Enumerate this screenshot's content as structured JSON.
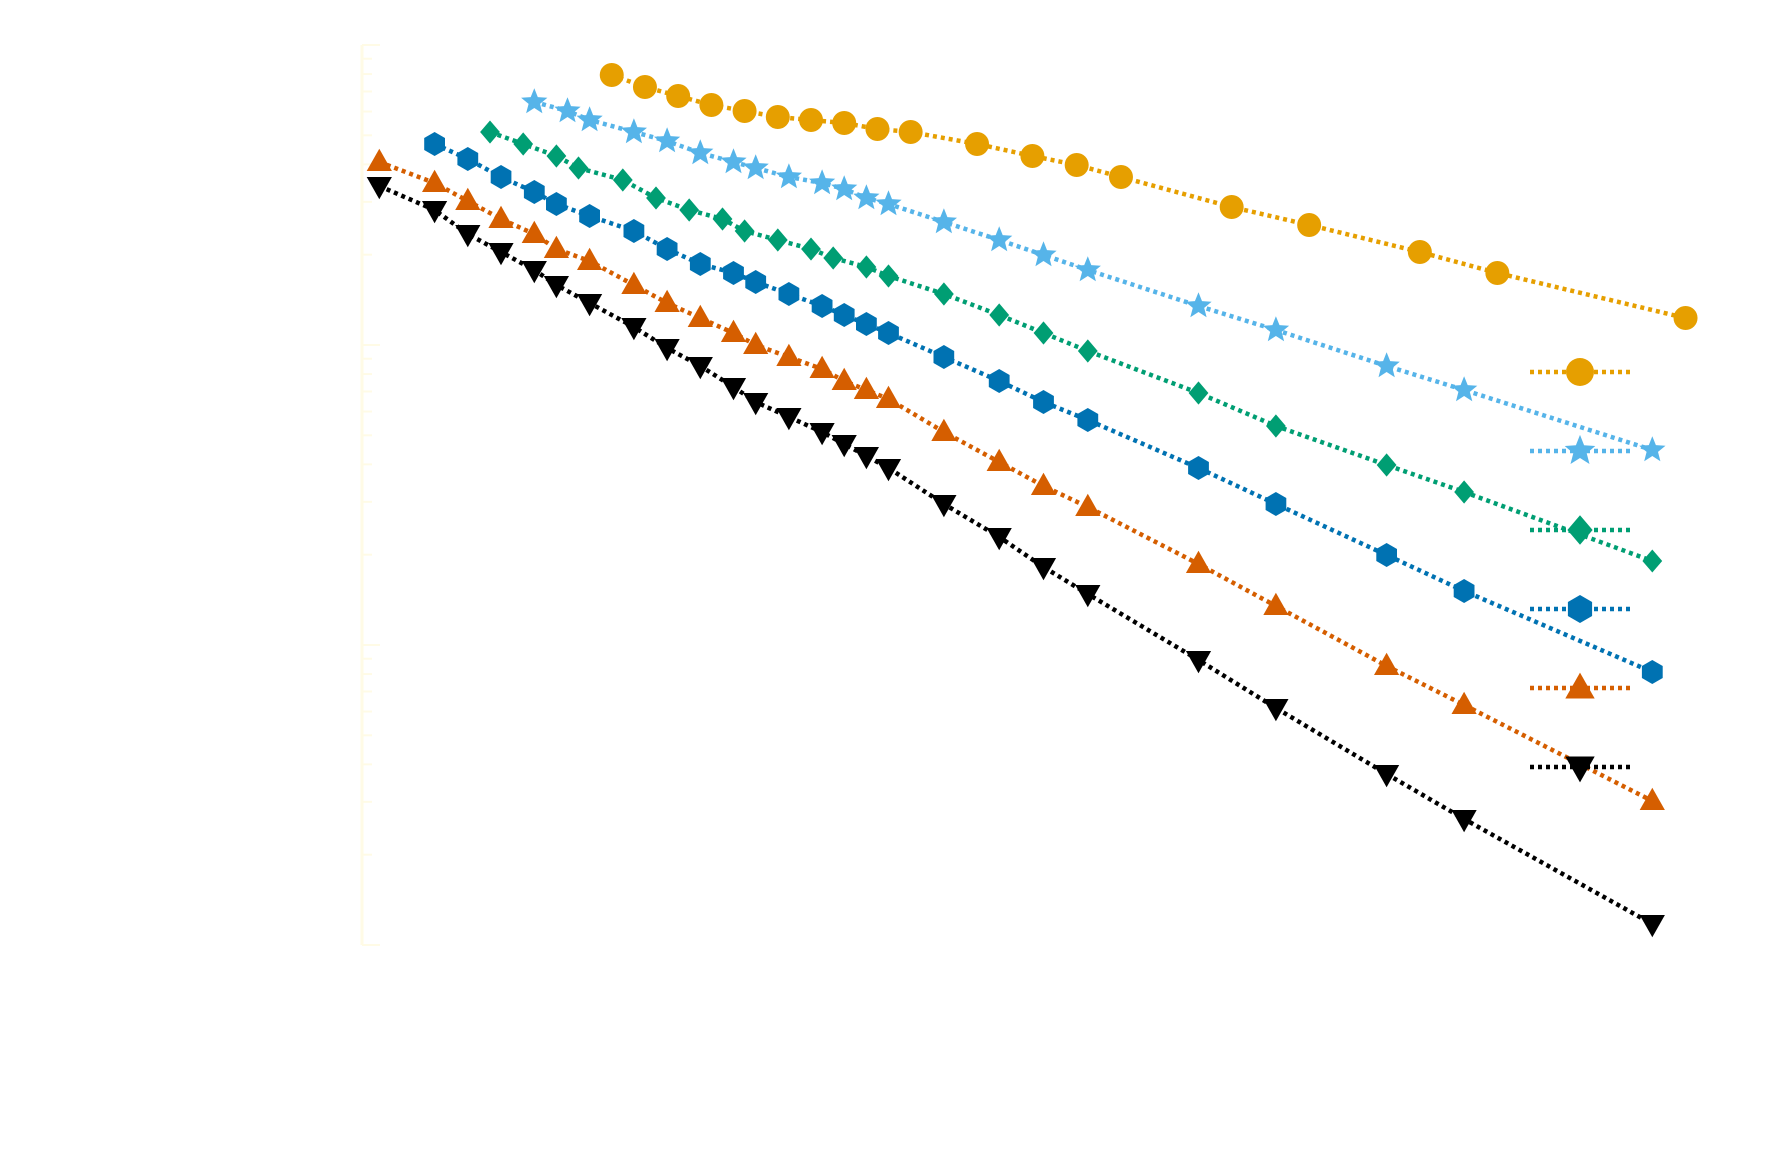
{
  "chart_data": {
    "type": "line",
    "title": "",
    "xlabel": "",
    "ylabel": "",
    "xscale": "log",
    "yscale": "log",
    "x_exponent_range": [
      0,
      1.35
    ],
    "y_exponent_range": [
      -3.0,
      0.0
    ],
    "grid": false,
    "legend": "right",
    "line_style": "dotted",
    "series": [
      {
        "name": "",
        "marker": "circle",
        "color": "#E69F00",
        "points": [
          [
            0.25,
            -0.1
          ],
          [
            0.28,
            -0.14
          ],
          [
            0.31,
            -0.17
          ],
          [
            0.34,
            -0.2
          ],
          [
            0.37,
            -0.22
          ],
          [
            0.4,
            -0.24
          ],
          [
            0.43,
            -0.25
          ],
          [
            0.46,
            -0.26
          ],
          [
            0.49,
            -0.28
          ],
          [
            0.52,
            -0.29
          ],
          [
            0.58,
            -0.33
          ],
          [
            0.63,
            -0.37
          ],
          [
            0.67,
            -0.4
          ],
          [
            0.71,
            -0.44
          ],
          [
            0.81,
            -0.54
          ],
          [
            0.88,
            -0.6
          ],
          [
            0.98,
            -0.69
          ],
          [
            1.05,
            -0.76
          ],
          [
            1.22,
            -0.91
          ]
        ]
      },
      {
        "name": "",
        "marker": "star",
        "color": "#56B4E9",
        "points": [
          [
            0.18,
            -0.19
          ],
          [
            0.21,
            -0.22
          ],
          [
            0.23,
            -0.25
          ],
          [
            0.27,
            -0.29
          ],
          [
            0.3,
            -0.32
          ],
          [
            0.33,
            -0.36
          ],
          [
            0.36,
            -0.39
          ],
          [
            0.38,
            -0.41
          ],
          [
            0.41,
            -0.44
          ],
          [
            0.44,
            -0.46
          ],
          [
            0.46,
            -0.48
          ],
          [
            0.48,
            -0.51
          ],
          [
            0.5,
            -0.53
          ],
          [
            0.55,
            -0.59
          ],
          [
            0.6,
            -0.65
          ],
          [
            0.64,
            -0.7
          ],
          [
            0.68,
            -0.75
          ],
          [
            0.78,
            -0.87
          ],
          [
            0.85,
            -0.95
          ],
          [
            0.95,
            -1.07
          ],
          [
            1.02,
            -1.15
          ],
          [
            1.19,
            -1.35
          ]
        ]
      },
      {
        "name": "",
        "marker": "diamond",
        "color": "#009E73",
        "points": [
          [
            0.14,
            -0.29
          ],
          [
            0.17,
            -0.33
          ],
          [
            0.2,
            -0.37
          ],
          [
            0.22,
            -0.41
          ],
          [
            0.26,
            -0.45
          ],
          [
            0.29,
            -0.51
          ],
          [
            0.32,
            -0.55
          ],
          [
            0.35,
            -0.58
          ],
          [
            0.37,
            -0.62
          ],
          [
            0.4,
            -0.65
          ],
          [
            0.43,
            -0.68
          ],
          [
            0.45,
            -0.71
          ],
          [
            0.48,
            -0.74
          ],
          [
            0.5,
            -0.77
          ],
          [
            0.55,
            -0.83
          ],
          [
            0.6,
            -0.9
          ],
          [
            0.64,
            -0.96
          ],
          [
            0.68,
            -1.02
          ],
          [
            0.78,
            -1.16
          ],
          [
            0.85,
            -1.27
          ],
          [
            0.95,
            -1.4
          ],
          [
            1.02,
            -1.49
          ],
          [
            1.19,
            -1.72
          ]
        ]
      },
      {
        "name": "",
        "marker": "hexagon",
        "color": "#0072B2",
        "points": [
          [
            0.09,
            -0.33
          ],
          [
            0.12,
            -0.38
          ],
          [
            0.15,
            -0.44
          ],
          [
            0.18,
            -0.49
          ],
          [
            0.2,
            -0.53
          ],
          [
            0.23,
            -0.57
          ],
          [
            0.27,
            -0.62
          ],
          [
            0.3,
            -0.68
          ],
          [
            0.33,
            -0.73
          ],
          [
            0.36,
            -0.76
          ],
          [
            0.38,
            -0.79
          ],
          [
            0.41,
            -0.83
          ],
          [
            0.44,
            -0.87
          ],
          [
            0.46,
            -0.9
          ],
          [
            0.48,
            -0.93
          ],
          [
            0.5,
            -0.96
          ],
          [
            0.55,
            -1.04
          ],
          [
            0.6,
            -1.12
          ],
          [
            0.64,
            -1.19
          ],
          [
            0.68,
            -1.25
          ],
          [
            0.78,
            -1.41
          ],
          [
            0.85,
            -1.53
          ],
          [
            0.95,
            -1.7
          ],
          [
            1.02,
            -1.82
          ],
          [
            1.19,
            -2.09
          ]
        ]
      },
      {
        "name": "",
        "marker": "triangle-up",
        "color": "#D55E00",
        "points": [
          [
            0.04,
            -0.39
          ],
          [
            0.09,
            -0.46
          ],
          [
            0.12,
            -0.52
          ],
          [
            0.15,
            -0.58
          ],
          [
            0.18,
            -0.63
          ],
          [
            0.2,
            -0.68
          ],
          [
            0.23,
            -0.72
          ],
          [
            0.27,
            -0.8
          ],
          [
            0.3,
            -0.86
          ],
          [
            0.33,
            -0.91
          ],
          [
            0.36,
            -0.96
          ],
          [
            0.38,
            -1.0
          ],
          [
            0.41,
            -1.04
          ],
          [
            0.44,
            -1.08
          ],
          [
            0.46,
            -1.12
          ],
          [
            0.48,
            -1.15
          ],
          [
            0.5,
            -1.18
          ],
          [
            0.55,
            -1.29
          ],
          [
            0.6,
            -1.39
          ],
          [
            0.64,
            -1.47
          ],
          [
            0.68,
            -1.54
          ],
          [
            0.78,
            -1.73
          ],
          [
            0.85,
            -1.87
          ],
          [
            0.95,
            -2.07
          ],
          [
            1.02,
            -2.2
          ],
          [
            1.19,
            -2.52
          ]
        ]
      },
      {
        "name": "",
        "marker": "triangle-down",
        "color": "#000000",
        "points": [
          [
            0.04,
            -0.47
          ],
          [
            0.09,
            -0.55
          ],
          [
            0.12,
            -0.63
          ],
          [
            0.15,
            -0.69
          ],
          [
            0.18,
            -0.75
          ],
          [
            0.2,
            -0.8
          ],
          [
            0.23,
            -0.86
          ],
          [
            0.27,
            -0.94
          ],
          [
            0.3,
            -1.01
          ],
          [
            0.33,
            -1.07
          ],
          [
            0.36,
            -1.14
          ],
          [
            0.38,
            -1.19
          ],
          [
            0.41,
            -1.24
          ],
          [
            0.44,
            -1.29
          ],
          [
            0.46,
            -1.33
          ],
          [
            0.48,
            -1.37
          ],
          [
            0.5,
            -1.41
          ],
          [
            0.55,
            -1.53
          ],
          [
            0.6,
            -1.64
          ],
          [
            0.64,
            -1.74
          ],
          [
            0.68,
            -1.83
          ],
          [
            0.78,
            -2.05
          ],
          [
            0.85,
            -2.21
          ],
          [
            0.95,
            -2.43
          ],
          [
            1.02,
            -2.58
          ],
          [
            1.19,
            -2.93
          ]
        ]
      }
    ]
  }
}
